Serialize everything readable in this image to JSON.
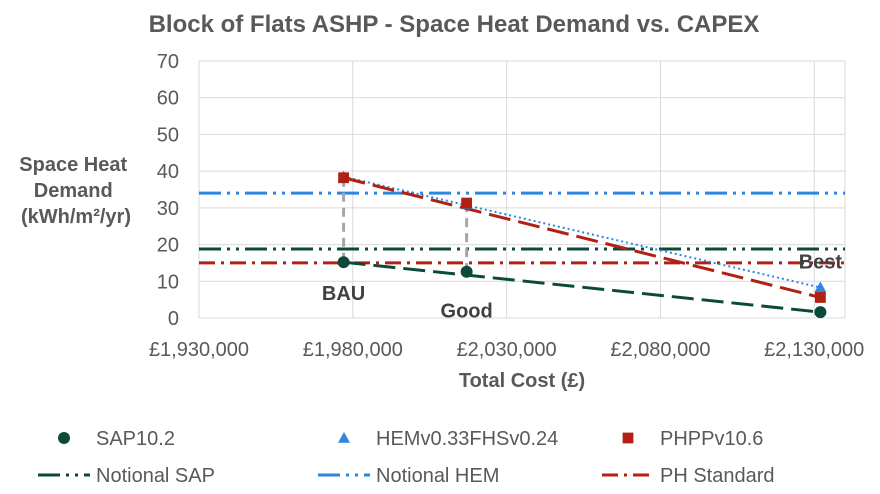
{
  "chart_data": {
    "type": "scatter",
    "title": "Block of Flats ASHP - Space Heat Demand vs. CAPEX",
    "xlabel": "Total Cost (£)",
    "ylabel_lines": [
      "Space Heat",
      "Demand",
      "(kWh/m²/yr)"
    ],
    "xlim": [
      1930000,
      2140000
    ],
    "ylim": [
      0,
      70
    ],
    "x_ticks": [
      1930000,
      1980000,
      2030000,
      2080000,
      2130000
    ],
    "x_tick_labels": [
      "£1,930,000",
      "£1,980,000",
      "£2,030,000",
      "£2,080,000",
      "£2,130,000"
    ],
    "y_ticks": [
      0,
      10,
      20,
      30,
      40,
      50,
      60,
      70
    ],
    "y_tick_labels": [
      "0",
      "10",
      "20",
      "30",
      "40",
      "50",
      "60",
      "70"
    ],
    "grid": true,
    "legend_position": "bottom",
    "series": [
      {
        "name": "SAP10.2",
        "marker": "circle",
        "color": "#0b4a3a",
        "x": [
          1977000,
          2017000,
          2132000
        ],
        "y": [
          15.2,
          12.6,
          1.6
        ],
        "trend": "dash"
      },
      {
        "name": "HEMv0.33FHSv0.24",
        "marker": "triangle",
        "color": "#2e86de",
        "x": [
          1977000,
          2017000,
          2132000
        ],
        "y": [
          38.5,
          31.0,
          8.3
        ],
        "trend": "dot"
      },
      {
        "name": "PHPPv10.6",
        "marker": "square",
        "color": "#b22014",
        "x": [
          1977000,
          2017000,
          2132000
        ],
        "y": [
          38.2,
          31.3,
          5.6
        ],
        "trend": "dash"
      }
    ],
    "reference_lines": [
      {
        "name": "Notional SAP",
        "y": 18.8,
        "color": "#0b4a3a",
        "style": "dash-dot-dot"
      },
      {
        "name": "Notional HEM",
        "y": 34.0,
        "color": "#2e86de",
        "style": "dash-dot-dot"
      },
      {
        "name": "PH Standard",
        "y": 15.0,
        "color": "#b22014",
        "style": "dash-dot"
      }
    ],
    "drop_lines": [
      {
        "x": 1977000,
        "y_from": 15.2,
        "y_to": 38.2
      },
      {
        "x": 2017000,
        "y_from": 12.6,
        "y_to": 31.3
      }
    ],
    "annotations": [
      {
        "text": "BAU",
        "x": 1977000,
        "y": 15.2
      },
      {
        "text": "Good",
        "x": 2017000,
        "y": 12.6
      },
      {
        "text": "Best",
        "x": 2132000,
        "y": 8.3
      }
    ]
  }
}
